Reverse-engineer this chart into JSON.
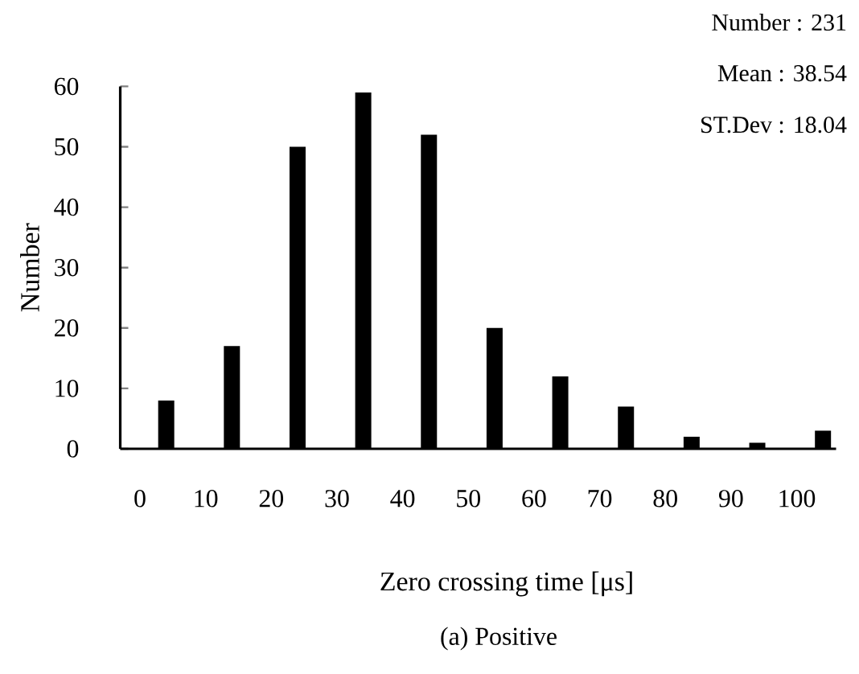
{
  "chart_data": {
    "type": "bar",
    "xlabel": "Zero crossing time  [μs]",
    "ylabel": "Number",
    "annotations": [
      "Number : 231",
      "Mean : 38.54",
      "ST.Dev : 18.04",
      "(a) Positive"
    ],
    "x": [
      4,
      14,
      24,
      34,
      44,
      54,
      64,
      74,
      84,
      94,
      104
    ],
    "values": [
      8,
      17,
      50,
      59,
      52,
      20,
      12,
      7,
      2,
      1,
      3
    ],
    "color": "#000000",
    "xlim": [
      -3,
      106
    ],
    "xticks": [
      0,
      10,
      20,
      30,
      40,
      50,
      60,
      70,
      80,
      90,
      100
    ],
    "ylim": [
      0,
      60
    ],
    "yticks": [
      0,
      10,
      20,
      30,
      40,
      50,
      60
    ]
  }
}
